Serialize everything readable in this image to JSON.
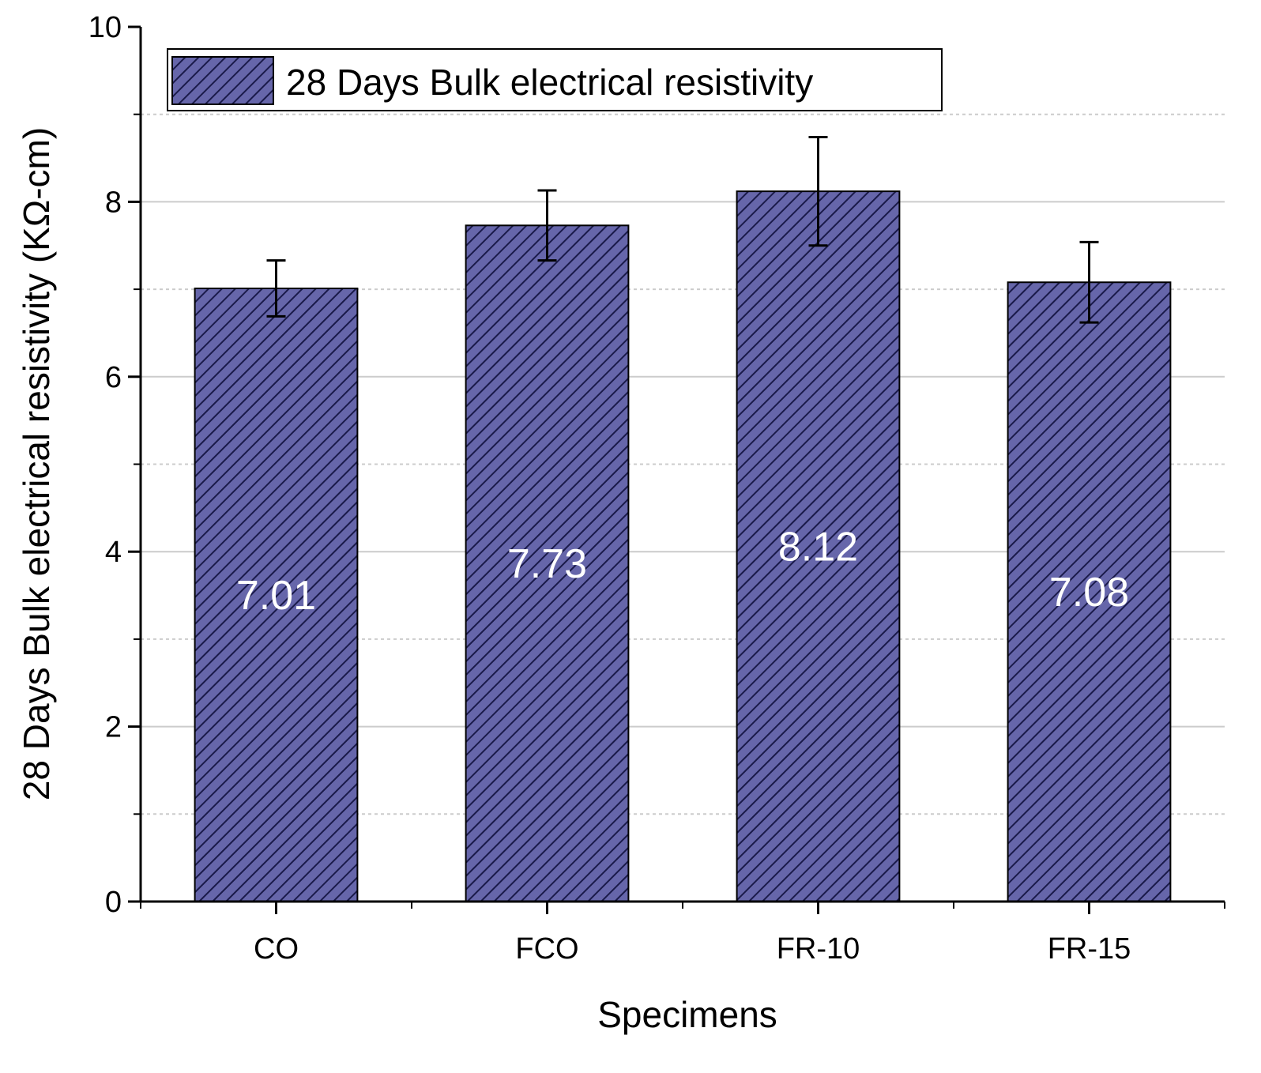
{
  "chart_data": {
    "type": "bar",
    "title": "",
    "xlabel": "Specimens",
    "ylabel": "28 Days Bulk electrical resistivity (KΩ-cm)",
    "categories": [
      "CO",
      "FCO",
      "FR-10",
      "FR-15"
    ],
    "series": [
      {
        "name": "28 Days Bulk electrical resistivity",
        "values": [
          7.01,
          7.73,
          8.12,
          7.08
        ],
        "error": [
          0.32,
          0.4,
          0.62,
          0.46
        ],
        "data_labels": [
          "7.01",
          "7.73",
          "8.12",
          "7.08"
        ]
      }
    ],
    "ylim": [
      0,
      10
    ],
    "yticks": [
      0,
      2,
      4,
      6,
      8,
      10
    ],
    "ytick_labels": [
      "0",
      "2",
      "4",
      "6",
      "8",
      "10"
    ],
    "grid": true,
    "legend_position": "top-left",
    "colors": {
      "bar_fill": "#6666aa",
      "hatch": "#1a1a4a",
      "grid": "#cccccc"
    }
  }
}
